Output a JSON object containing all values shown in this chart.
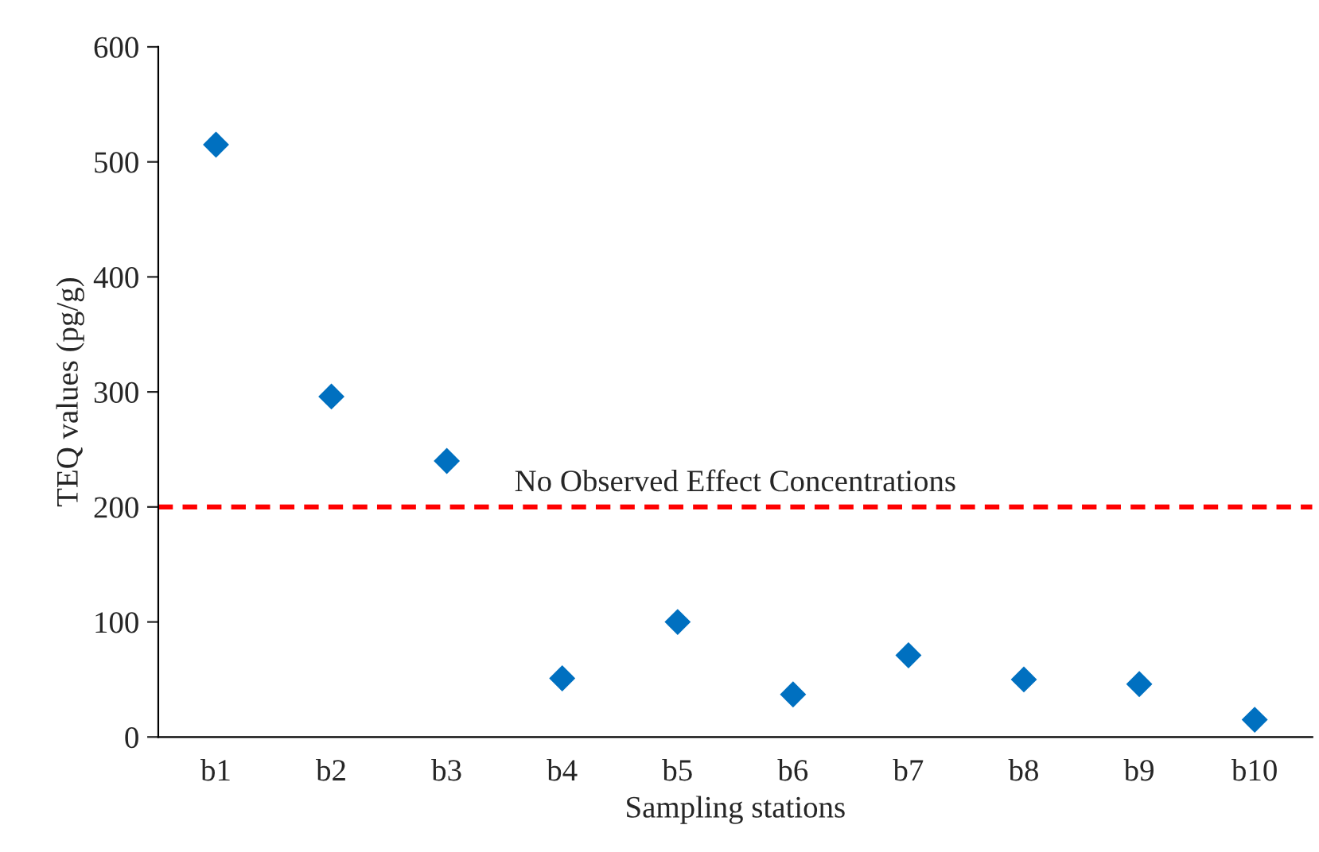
{
  "chart_data": {
    "type": "scatter",
    "xlabel": "Sampling stations",
    "ylabel": "TEQ values (pg/g)",
    "categories": [
      "b1",
      "b2",
      "b3",
      "b4",
      "b5",
      "b6",
      "b7",
      "b8",
      "b9",
      "b10"
    ],
    "series": [
      {
        "color": "#0070c0",
        "values": [
          515,
          296,
          240,
          51,
          100,
          37,
          71,
          50,
          46,
          15
        ]
      }
    ],
    "ylim": [
      0,
      600
    ],
    "yticks": [
      0,
      100,
      200,
      300,
      400,
      500,
      600
    ],
    "marker": "diamond",
    "grid": false,
    "legend": false,
    "ref_lines": [
      {
        "axis": "y",
        "value": 200,
        "label": "No Observed Effect Concentrations",
        "color": "#ff0000",
        "line_style": "dashed"
      }
    ]
  }
}
